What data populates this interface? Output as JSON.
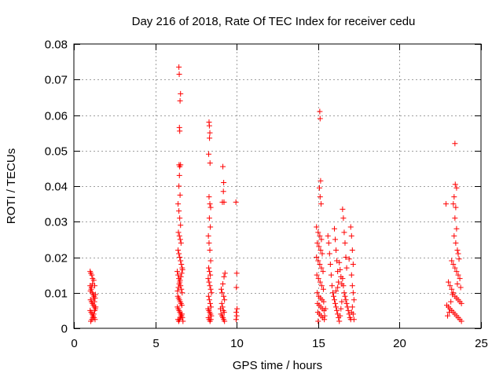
{
  "chart_data": {
    "type": "scatter",
    "title": "Day 216 of 2018, Rate Of TEC Index for receiver cedu",
    "xlabel": "GPS time / hours",
    "ylabel": "ROTI / TECUs",
    "xlim": [
      0,
      25
    ],
    "ylim": [
      0,
      0.08
    ],
    "xticks": [
      0,
      5,
      10,
      15,
      20,
      25
    ],
    "xtick_labels": [
      "0",
      "5",
      "10",
      "15",
      "20",
      "25"
    ],
    "yticks": [
      0,
      0.01,
      0.02,
      0.03,
      0.04,
      0.05,
      0.06,
      0.07,
      0.08
    ],
    "ytick_labels": [
      "0",
      "0.01",
      "0.02",
      "0.03",
      "0.04",
      "0.05",
      "0.06",
      "0.07",
      "0.08"
    ],
    "grid": true,
    "marker": "+",
    "marker_color": "#ff0000",
    "series": [
      {
        "name": "ROTI",
        "points": [
          [
            1.0,
            0.016
          ],
          [
            1.04,
            0.0155
          ],
          [
            1.1,
            0.015
          ],
          [
            1.15,
            0.014
          ],
          [
            1.22,
            0.0135
          ],
          [
            1.28,
            0.012
          ],
          [
            1.0,
            0.012
          ],
          [
            1.06,
            0.011
          ],
          [
            1.12,
            0.01
          ],
          [
            1.18,
            0.0095
          ],
          [
            1.24,
            0.009
          ],
          [
            1.3,
            0.0085
          ],
          [
            1.02,
            0.008
          ],
          [
            1.08,
            0.0075
          ],
          [
            1.14,
            0.007
          ],
          [
            1.2,
            0.0065
          ],
          [
            1.26,
            0.006
          ],
          [
            1.32,
            0.0055
          ],
          [
            1.0,
            0.005
          ],
          [
            1.06,
            0.0045
          ],
          [
            1.12,
            0.004
          ],
          [
            1.18,
            0.0035
          ],
          [
            1.24,
            0.003
          ],
          [
            1.3,
            0.0025
          ],
          [
            1.04,
            0.002
          ],
          [
            1.1,
            0.0025
          ],
          [
            1.16,
            0.003
          ],
          [
            1.22,
            0.004
          ],
          [
            1.28,
            0.005
          ],
          [
            1.34,
            0.006
          ],
          [
            1.02,
            0.0105
          ],
          [
            1.08,
            0.0115
          ],
          [
            1.14,
            0.0125
          ],
          [
            1.2,
            0.0085
          ],
          [
            1.26,
            0.0075
          ],
          [
            1.32,
            0.0095
          ],
          [
            6.45,
            0.0735
          ],
          [
            6.47,
            0.0715
          ],
          [
            6.55,
            0.066
          ],
          [
            6.52,
            0.064
          ],
          [
            6.48,
            0.0565
          ],
          [
            6.5,
            0.0555
          ],
          [
            6.46,
            0.046
          ],
          [
            6.5,
            0.0455
          ],
          [
            6.55,
            0.046
          ],
          [
            6.48,
            0.043
          ],
          [
            6.45,
            0.04
          ],
          [
            6.52,
            0.0375
          ],
          [
            6.4,
            0.035
          ],
          [
            6.45,
            0.033
          ],
          [
            6.5,
            0.031
          ],
          [
            6.55,
            0.029
          ],
          [
            6.42,
            0.027
          ],
          [
            6.48,
            0.026
          ],
          [
            6.53,
            0.025
          ],
          [
            6.58,
            0.024
          ],
          [
            6.4,
            0.022
          ],
          [
            6.45,
            0.021
          ],
          [
            6.5,
            0.02
          ],
          [
            6.55,
            0.019
          ],
          [
            6.6,
            0.018
          ],
          [
            6.65,
            0.017
          ],
          [
            6.35,
            0.016
          ],
          [
            6.4,
            0.015
          ],
          [
            6.45,
            0.014
          ],
          [
            6.5,
            0.013
          ],
          [
            6.55,
            0.012
          ],
          [
            6.6,
            0.011
          ],
          [
            6.65,
            0.01
          ],
          [
            6.38,
            0.009
          ],
          [
            6.43,
            0.0085
          ],
          [
            6.48,
            0.008
          ],
          [
            6.53,
            0.0075
          ],
          [
            6.58,
            0.007
          ],
          [
            6.63,
            0.0065
          ],
          [
            6.36,
            0.006
          ],
          [
            6.41,
            0.0055
          ],
          [
            6.46,
            0.005
          ],
          [
            6.51,
            0.0045
          ],
          [
            6.56,
            0.004
          ],
          [
            6.61,
            0.0035
          ],
          [
            6.66,
            0.003
          ],
          [
            6.39,
            0.0025
          ],
          [
            6.44,
            0.002
          ],
          [
            6.49,
            0.0025
          ],
          [
            6.54,
            0.003
          ],
          [
            6.59,
            0.0035
          ],
          [
            6.64,
            0.004
          ],
          [
            6.7,
            0.002
          ],
          [
            6.37,
            0.0105
          ],
          [
            6.42,
            0.0115
          ],
          [
            6.47,
            0.0125
          ],
          [
            6.52,
            0.0135
          ],
          [
            6.57,
            0.0145
          ],
          [
            6.62,
            0.0155
          ],
          [
            6.67,
            0.0165
          ],
          [
            8.3,
            0.058
          ],
          [
            8.32,
            0.057
          ],
          [
            8.35,
            0.055
          ],
          [
            8.33,
            0.0535
          ],
          [
            8.28,
            0.049
          ],
          [
            8.36,
            0.0465
          ],
          [
            8.3,
            0.037
          ],
          [
            8.35,
            0.035
          ],
          [
            8.4,
            0.034
          ],
          [
            8.32,
            0.031
          ],
          [
            8.38,
            0.0285
          ],
          [
            8.26,
            0.026
          ],
          [
            8.3,
            0.024
          ],
          [
            8.35,
            0.022
          ],
          [
            8.4,
            0.019
          ],
          [
            8.28,
            0.017
          ],
          [
            8.33,
            0.016
          ],
          [
            8.38,
            0.015
          ],
          [
            8.25,
            0.014
          ],
          [
            8.3,
            0.013
          ],
          [
            8.35,
            0.012
          ],
          [
            8.4,
            0.011
          ],
          [
            8.45,
            0.01
          ],
          [
            8.27,
            0.009
          ],
          [
            8.32,
            0.008
          ],
          [
            8.37,
            0.007
          ],
          [
            8.42,
            0.006
          ],
          [
            8.24,
            0.0055
          ],
          [
            8.29,
            0.005
          ],
          [
            8.34,
            0.0045
          ],
          [
            8.39,
            0.004
          ],
          [
            8.44,
            0.0035
          ],
          [
            8.26,
            0.003
          ],
          [
            8.31,
            0.0025
          ],
          [
            8.36,
            0.002
          ],
          [
            8.41,
            0.0025
          ],
          [
            9.15,
            0.0455
          ],
          [
            9.2,
            0.041
          ],
          [
            9.18,
            0.0385
          ],
          [
            9.12,
            0.0355
          ],
          [
            9.22,
            0.0355
          ],
          [
            9.28,
            0.0155
          ],
          [
            9.22,
            0.0145
          ],
          [
            9.15,
            0.0125
          ],
          [
            9.05,
            0.011
          ],
          [
            9.1,
            0.01
          ],
          [
            9.2,
            0.009
          ],
          [
            9.25,
            0.008
          ],
          [
            9.08,
            0.007
          ],
          [
            9.13,
            0.006
          ],
          [
            9.18,
            0.005
          ],
          [
            9.23,
            0.0045
          ],
          [
            9.03,
            0.004
          ],
          [
            9.1,
            0.0035
          ],
          [
            9.15,
            0.003
          ],
          [
            9.2,
            0.0025
          ],
          [
            9.25,
            0.002
          ],
          [
            9.0,
            0.0055
          ],
          [
            9.95,
            0.0355
          ],
          [
            10.0,
            0.0155
          ],
          [
            9.98,
            0.0115
          ],
          [
            10.02,
            0.0055
          ],
          [
            9.97,
            0.0045
          ],
          [
            10.0,
            0.0035
          ],
          [
            9.96,
            0.0025
          ],
          [
            15.1,
            0.061
          ],
          [
            15.12,
            0.059
          ],
          [
            15.15,
            0.0415
          ],
          [
            15.08,
            0.0395
          ],
          [
            15.12,
            0.037
          ],
          [
            15.18,
            0.035
          ],
          [
            14.9,
            0.0285
          ],
          [
            15.0,
            0.027
          ],
          [
            15.1,
            0.026
          ],
          [
            15.2,
            0.025
          ],
          [
            14.95,
            0.024
          ],
          [
            15.05,
            0.023
          ],
          [
            15.15,
            0.022
          ],
          [
            15.25,
            0.021
          ],
          [
            14.9,
            0.02
          ],
          [
            15.0,
            0.019
          ],
          [
            15.1,
            0.018
          ],
          [
            15.2,
            0.017
          ],
          [
            15.3,
            0.016
          ],
          [
            14.92,
            0.015
          ],
          [
            15.02,
            0.014
          ],
          [
            15.12,
            0.013
          ],
          [
            15.22,
            0.012
          ],
          [
            15.32,
            0.011
          ],
          [
            14.94,
            0.01
          ],
          [
            15.04,
            0.009
          ],
          [
            15.14,
            0.0085
          ],
          [
            15.24,
            0.008
          ],
          [
            15.34,
            0.0075
          ],
          [
            14.96,
            0.007
          ],
          [
            15.06,
            0.0065
          ],
          [
            15.16,
            0.006
          ],
          [
            15.26,
            0.0055
          ],
          [
            15.36,
            0.005
          ],
          [
            14.98,
            0.0045
          ],
          [
            15.08,
            0.004
          ],
          [
            15.18,
            0.0035
          ],
          [
            15.28,
            0.003
          ],
          [
            15.38,
            0.0025
          ],
          [
            15.0,
            0.002
          ],
          [
            15.4,
            0.0035
          ],
          [
            15.45,
            0.0055
          ],
          [
            15.6,
            0.026
          ],
          [
            15.65,
            0.024
          ],
          [
            15.7,
            0.021
          ],
          [
            15.75,
            0.018
          ],
          [
            15.8,
            0.015
          ],
          [
            15.85,
            0.012
          ],
          [
            16.0,
            0.028
          ],
          [
            16.05,
            0.025
          ],
          [
            16.1,
            0.022
          ],
          [
            16.15,
            0.019
          ],
          [
            16.2,
            0.016
          ],
          [
            16.25,
            0.013
          ],
          [
            15.9,
            0.01
          ],
          [
            15.95,
            0.009
          ],
          [
            16.0,
            0.008
          ],
          [
            16.05,
            0.007
          ],
          [
            16.1,
            0.006
          ],
          [
            16.15,
            0.005
          ],
          [
            16.2,
            0.004
          ],
          [
            16.25,
            0.003
          ],
          [
            16.3,
            0.002
          ],
          [
            16.35,
            0.0035
          ],
          [
            16.4,
            0.0055
          ],
          [
            16.45,
            0.0075
          ],
          [
            16.5,
            0.0335
          ],
          [
            16.55,
            0.031
          ],
          [
            16.6,
            0.027
          ],
          [
            16.65,
            0.024
          ],
          [
            16.7,
            0.02
          ],
          [
            16.75,
            0.017
          ],
          [
            16.5,
            0.014
          ],
          [
            16.55,
            0.012
          ],
          [
            16.6,
            0.01
          ],
          [
            16.65,
            0.009
          ],
          [
            16.7,
            0.008
          ],
          [
            16.75,
            0.007
          ],
          [
            16.8,
            0.006
          ],
          [
            16.85,
            0.005
          ],
          [
            16.9,
            0.004
          ],
          [
            16.95,
            0.003
          ],
          [
            17.0,
            0.0025
          ],
          [
            17.05,
            0.0045
          ],
          [
            17.0,
            0.0285
          ],
          [
            17.05,
            0.026
          ],
          [
            17.1,
            0.022
          ],
          [
            17.15,
            0.018
          ],
          [
            17.05,
            0.015
          ],
          [
            17.1,
            0.012
          ],
          [
            17.15,
            0.01
          ],
          [
            17.2,
            0.008
          ],
          [
            17.1,
            0.006
          ],
          [
            17.15,
            0.004
          ],
          [
            17.2,
            0.0025
          ],
          [
            16.9,
            0.0195
          ],
          [
            16.3,
            0.0185
          ],
          [
            16.35,
            0.0165
          ],
          [
            16.4,
            0.0145
          ],
          [
            16.45,
            0.0125
          ],
          [
            16.2,
            0.0115
          ],
          [
            16.1,
            0.0105
          ],
          [
            23.4,
            0.052
          ],
          [
            23.42,
            0.0405
          ],
          [
            23.5,
            0.0395
          ],
          [
            23.35,
            0.037
          ],
          [
            23.3,
            0.035
          ],
          [
            23.45,
            0.034
          ],
          [
            23.4,
            0.031
          ],
          [
            23.5,
            0.028
          ],
          [
            23.35,
            0.026
          ],
          [
            23.45,
            0.024
          ],
          [
            23.55,
            0.022
          ],
          [
            23.6,
            0.021
          ],
          [
            23.2,
            0.019
          ],
          [
            23.3,
            0.018
          ],
          [
            23.4,
            0.017
          ],
          [
            23.5,
            0.016
          ],
          [
            23.6,
            0.015
          ],
          [
            23.7,
            0.014
          ],
          [
            23.0,
            0.013
          ],
          [
            23.1,
            0.012
          ],
          [
            23.2,
            0.011
          ],
          [
            23.3,
            0.01
          ],
          [
            23.4,
            0.009
          ],
          [
            23.5,
            0.0085
          ],
          [
            23.6,
            0.008
          ],
          [
            23.7,
            0.0075
          ],
          [
            23.8,
            0.007
          ],
          [
            22.9,
            0.0065
          ],
          [
            23.0,
            0.006
          ],
          [
            23.1,
            0.0055
          ],
          [
            23.2,
            0.005
          ],
          [
            23.3,
            0.0045
          ],
          [
            23.4,
            0.004
          ],
          [
            23.5,
            0.0035
          ],
          [
            23.6,
            0.003
          ],
          [
            23.7,
            0.0025
          ],
          [
            23.8,
            0.002
          ],
          [
            22.95,
            0.0035
          ],
          [
            23.05,
            0.0045
          ],
          [
            23.15,
            0.0075
          ],
          [
            23.25,
            0.0095
          ],
          [
            23.75,
            0.0115
          ],
          [
            22.85,
            0.035
          ],
          [
            23.65,
            0.0195
          ],
          [
            23.55,
            0.0125
          ]
        ]
      }
    ]
  }
}
